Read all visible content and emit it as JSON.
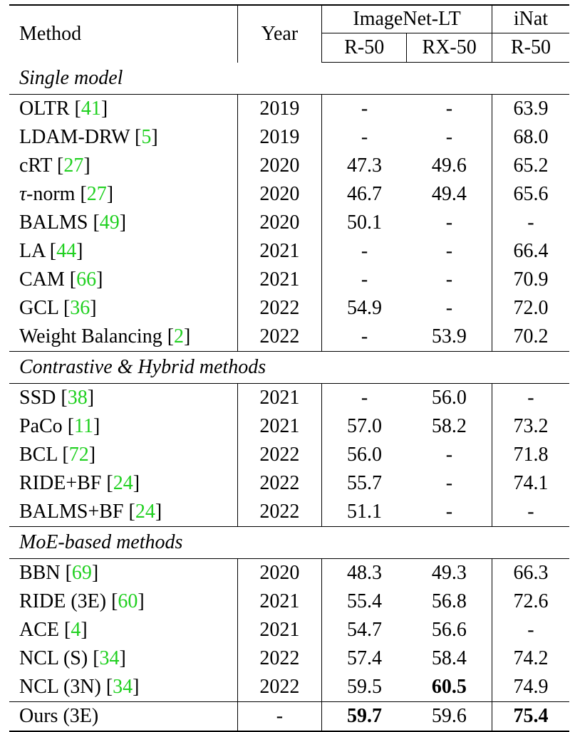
{
  "header": {
    "method": "Method",
    "year": "Year",
    "group1": "ImageNet-LT",
    "group2": "iNat",
    "sub1": "R-50",
    "sub2": "RX-50",
    "sub3": "R-50"
  },
  "sections": [
    {
      "title": "Single model",
      "rows": [
        {
          "name": "OLTR",
          "cite": "41",
          "year": "2019",
          "r50": "-",
          "rx50": "-",
          "inat": "63.9"
        },
        {
          "name": "LDAM-DRW",
          "cite": "5",
          "year": "2019",
          "r50": "-",
          "rx50": "-",
          "inat": "68.0"
        },
        {
          "name": "cRT",
          "cite": "27",
          "year": "2020",
          "r50": "47.3",
          "rx50": "49.6",
          "inat": "65.2"
        },
        {
          "name": "τ-norm",
          "cite": "27",
          "year": "2020",
          "r50": "46.7",
          "rx50": "49.4",
          "inat": "65.6"
        },
        {
          "name": "BALMS",
          "cite": "49",
          "year": "2020",
          "r50": "50.1",
          "rx50": "-",
          "inat": "-"
        },
        {
          "name": "LA",
          "cite": "44",
          "year": "2021",
          "r50": "-",
          "rx50": "-",
          "inat": "66.4"
        },
        {
          "name": "CAM",
          "cite": "66",
          "year": "2021",
          "r50": "-",
          "rx50": "-",
          "inat": "70.9"
        },
        {
          "name": "GCL",
          "cite": "36",
          "year": "2022",
          "r50": "54.9",
          "rx50": "-",
          "inat": "72.0"
        },
        {
          "name": "Weight Balancing",
          "cite": "2",
          "year": "2022",
          "r50": "-",
          "rx50": "53.9",
          "inat": "70.2"
        }
      ]
    },
    {
      "title": "Contrastive & Hybrid methods",
      "rows": [
        {
          "name": "SSD",
          "cite": "38",
          "year": "2021",
          "r50": "-",
          "rx50": "56.0",
          "inat": "-"
        },
        {
          "name": "PaCo",
          "cite": "11",
          "year": "2021",
          "r50": "57.0",
          "rx50": "58.2",
          "inat": "73.2"
        },
        {
          "name": "BCL",
          "cite": "72",
          "year": "2022",
          "r50": "56.0",
          "rx50": "-",
          "inat": "71.8"
        },
        {
          "name": "RIDE+BF",
          "cite": "24",
          "year": "2022",
          "r50": "55.7",
          "rx50": "-",
          "inat": "74.1"
        },
        {
          "name": "BALMS+BF",
          "cite": "24",
          "year": "2022",
          "r50": "51.1",
          "rx50": "-",
          "inat": "-"
        }
      ]
    },
    {
      "title": "MoE-based methods",
      "rows": [
        {
          "name": "BBN",
          "cite": "69",
          "year": "2020",
          "r50": "48.3",
          "rx50": "49.3",
          "inat": "66.3"
        },
        {
          "name": "RIDE (3E)",
          "cite": "60",
          "year": "2021",
          "r50": "55.4",
          "rx50": "56.8",
          "inat": "72.6"
        },
        {
          "name": "ACE",
          "cite": "4",
          "year": "2021",
          "r50": "54.7",
          "rx50": "56.6",
          "inat": "-"
        },
        {
          "name": "NCL (S)",
          "cite": "34",
          "year": "2022",
          "r50": "57.4",
          "rx50": "58.4",
          "inat": "74.2"
        },
        {
          "name": "NCL (3N)",
          "cite": "34",
          "year": "2022",
          "r50": "59.5",
          "rx50": "60.5",
          "inat": "74.9",
          "bold": [
            "rx50"
          ]
        }
      ]
    }
  ],
  "final_row": {
    "name": "Ours (3E)",
    "cite": "",
    "year": "-",
    "r50": "59.7",
    "rx50": "59.6",
    "inat": "75.4",
    "bold": [
      "r50",
      "inat"
    ]
  }
}
